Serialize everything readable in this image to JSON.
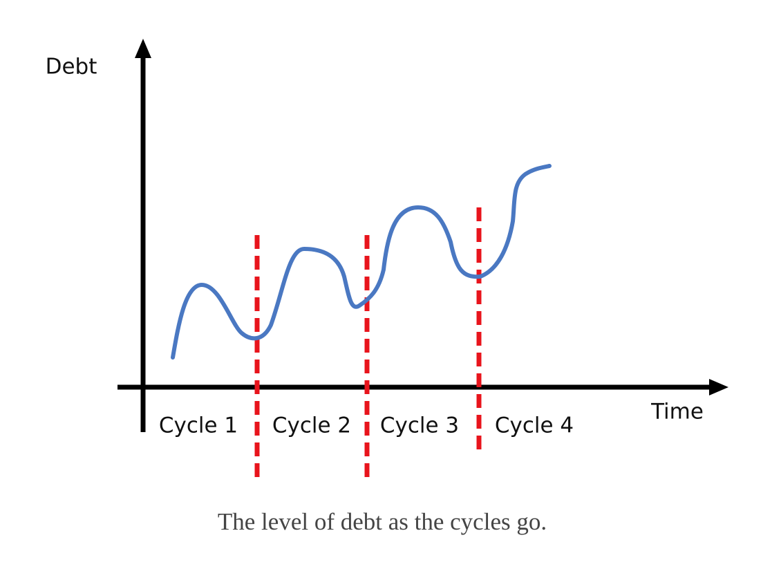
{
  "diagram": {
    "y_axis_label": "Debt",
    "x_axis_label": "Time",
    "cycles": [
      "Cycle 1",
      "Cycle 2",
      "Cycle 3",
      "Cycle 4"
    ]
  },
  "caption": "The level of debt as the cycles go."
}
